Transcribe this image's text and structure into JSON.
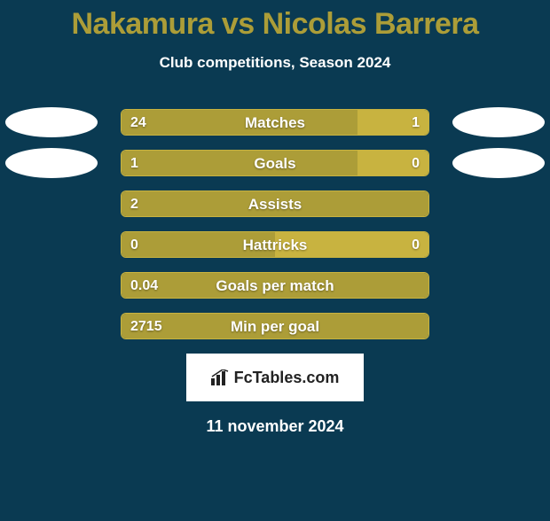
{
  "title": "Nakamura vs Nicolas Barrera",
  "subtitle": "Club competitions, Season 2024",
  "date": "11 november 2024",
  "logo_text": "FcTables.com",
  "colors": {
    "background": "#0a3a52",
    "title": "#ac9d38",
    "text": "#ffffff",
    "bar_left": "#ac9d38",
    "bar_right": "#c8b340",
    "bar_border": "#c8b340",
    "avatar_bg": "#ffffff"
  },
  "rows": [
    {
      "label": "Matches",
      "left_val": "24",
      "right_val": "1",
      "left_pct": 77,
      "right_pct": 23,
      "show_avatars": true,
      "show_right_val": true
    },
    {
      "label": "Goals",
      "left_val": "1",
      "right_val": "0",
      "left_pct": 77,
      "right_pct": 23,
      "show_avatars": true,
      "show_right_val": true
    },
    {
      "label": "Assists",
      "left_val": "2",
      "right_val": "",
      "left_pct": 100,
      "right_pct": 0,
      "show_avatars": false,
      "show_right_val": false
    },
    {
      "label": "Hattricks",
      "left_val": "0",
      "right_val": "0",
      "left_pct": 50,
      "right_pct": 50,
      "show_avatars": false,
      "show_right_val": true
    },
    {
      "label": "Goals per match",
      "left_val": "0.04",
      "right_val": "",
      "left_pct": 100,
      "right_pct": 0,
      "show_avatars": false,
      "show_right_val": false
    },
    {
      "label": "Min per goal",
      "left_val": "2715",
      "right_val": "",
      "left_pct": 100,
      "right_pct": 0,
      "show_avatars": false,
      "show_right_val": false
    }
  ]
}
